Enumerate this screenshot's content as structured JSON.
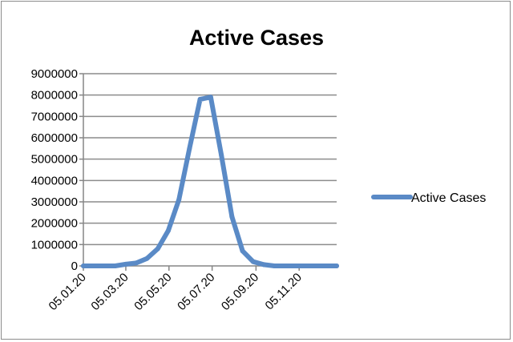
{
  "chart_data": {
    "type": "line",
    "title": "Active Cases",
    "xlabel": "",
    "ylabel": "",
    "ylim": [
      0,
      9000000
    ],
    "yticks": [
      "0",
      "1000000",
      "2000000",
      "3000000",
      "4000000",
      "5000000",
      "6000000",
      "7000000",
      "8000000",
      "9000000"
    ],
    "xlim": [
      "2020-01-05",
      "2020-12-28"
    ],
    "xticks": [
      {
        "label": "05.01.20",
        "date": "2020-01-05"
      },
      {
        "label": "05.03.20",
        "date": "2020-03-05"
      },
      {
        "label": "05.05.20",
        "date": "2020-05-05"
      },
      {
        "label": "05.07.20",
        "date": "2020-07-05"
      },
      {
        "label": "05.09.20",
        "date": "2020-09-05"
      },
      {
        "label": "05.11.20",
        "date": "2020-11-05"
      }
    ],
    "grid": true,
    "legend": "right",
    "series": [
      {
        "name": "Active Cases",
        "color": "#5a8ac6",
        "points": [
          {
            "x": "2020-01-05",
            "y": 0
          },
          {
            "x": "2020-01-20",
            "y": 0
          },
          {
            "x": "2020-02-04",
            "y": 0
          },
          {
            "x": "2020-02-19",
            "y": 0
          },
          {
            "x": "2020-03-05",
            "y": 80000
          },
          {
            "x": "2020-03-20",
            "y": 140000
          },
          {
            "x": "2020-04-04",
            "y": 350000
          },
          {
            "x": "2020-04-19",
            "y": 800000
          },
          {
            "x": "2020-05-04",
            "y": 1650000
          },
          {
            "x": "2020-05-19",
            "y": 3100000
          },
          {
            "x": "2020-06-03",
            "y": 5500000
          },
          {
            "x": "2020-06-18",
            "y": 7800000
          },
          {
            "x": "2020-07-03",
            "y": 7900000
          },
          {
            "x": "2020-07-18",
            "y": 5200000
          },
          {
            "x": "2020-08-02",
            "y": 2300000
          },
          {
            "x": "2020-08-17",
            "y": 700000
          },
          {
            "x": "2020-09-01",
            "y": 200000
          },
          {
            "x": "2020-09-16",
            "y": 60000
          },
          {
            "x": "2020-10-01",
            "y": 0
          },
          {
            "x": "2020-10-16",
            "y": 0
          },
          {
            "x": "2020-10-31",
            "y": 0
          },
          {
            "x": "2020-11-15",
            "y": 0
          },
          {
            "x": "2020-11-30",
            "y": 0
          },
          {
            "x": "2020-12-15",
            "y": 0
          },
          {
            "x": "2020-12-28",
            "y": 0
          }
        ]
      }
    ]
  }
}
